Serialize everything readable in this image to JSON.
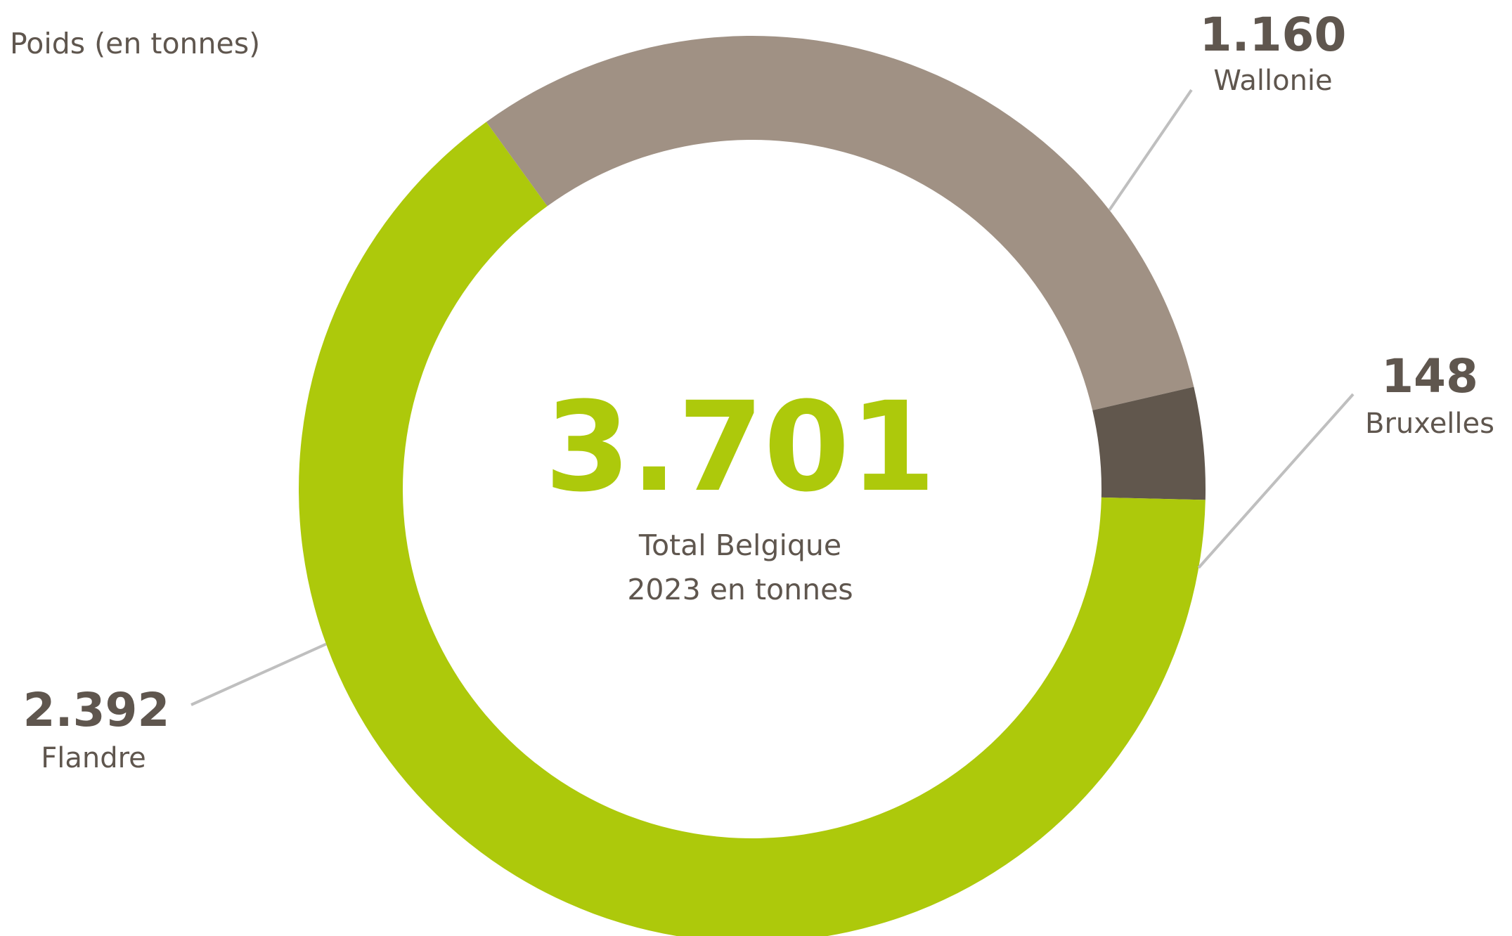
{
  "chart_data": {
    "type": "pie",
    "variant": "donut",
    "caption": "Poids (en tonnes)",
    "center": {
      "value": "3.701",
      "line1": "Total Belgique",
      "line2": "2023 en tonnes"
    },
    "slices": [
      {
        "name": "Wallonie",
        "label": "1.160",
        "value": 1160,
        "color": "#a09184"
      },
      {
        "name": "Bruxelles",
        "label": "148",
        "value": 148,
        "color": "#61574d"
      },
      {
        "name": "Flandre",
        "label": "2.392",
        "value": 2392,
        "color": "#adc90b"
      }
    ],
    "total": 3701,
    "leader_color": "#bfbfbf"
  }
}
